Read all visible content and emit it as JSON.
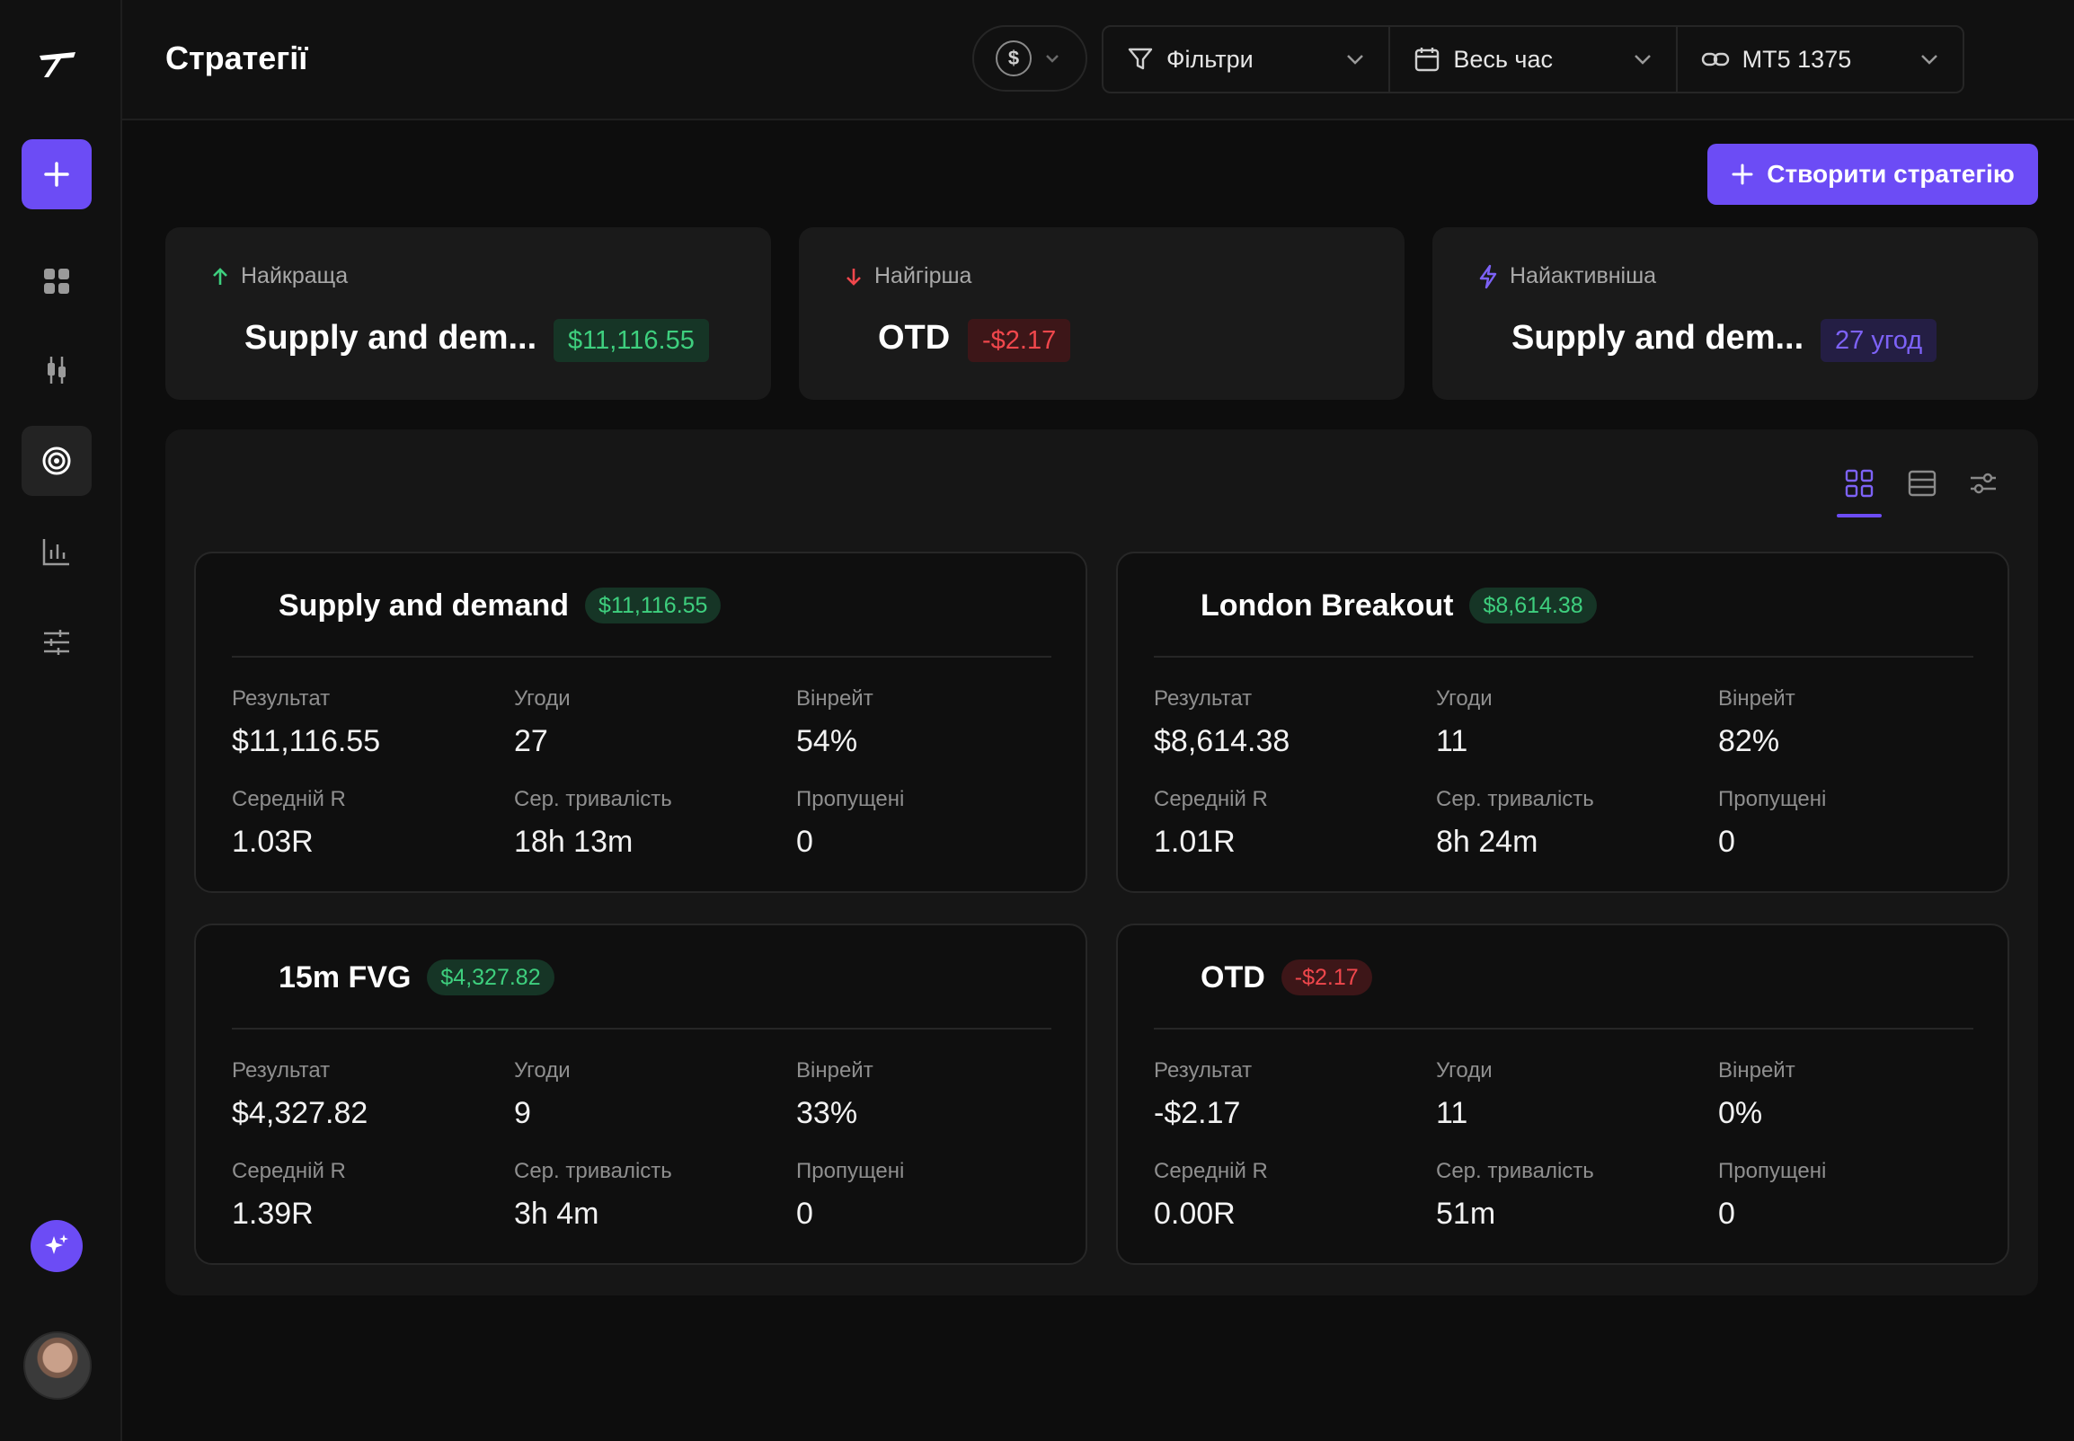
{
  "header": {
    "title": "Стратегії",
    "currency_symbol": "$",
    "filters": [
      {
        "label": "Фільтри",
        "icon": "filter-icon"
      },
      {
        "label": "Весь час",
        "icon": "calendar-icon"
      },
      {
        "label": "MT5 1375",
        "icon": "link-icon"
      }
    ]
  },
  "toolbar": {
    "create_label": "Створити стратегію"
  },
  "summary": {
    "best": {
      "label": "Найкраща",
      "name": "Supply and dem...",
      "value": "$11,116.55"
    },
    "worst": {
      "label": "Найгірша",
      "name": "OTD",
      "value": "-$2.17"
    },
    "active": {
      "label": "Найактивніша",
      "name": "Supply and dem...",
      "value": "27 угод"
    }
  },
  "stat_labels": {
    "result": "Результат",
    "trades": "Угоди",
    "winrate": "Вінрейт",
    "avg_r": "Середній R",
    "avg_duration": "Сер. тривалість",
    "missed": "Пропущені"
  },
  "strategies": [
    {
      "name": "Supply and demand",
      "badge": "$11,116.55",
      "result": "$11,116.55",
      "trades": "27",
      "winrate": "54%",
      "avg_r": "1.03R",
      "avg_duration": "18h 13m",
      "missed": "0"
    },
    {
      "name": "London Breakout",
      "badge": "$8,614.38",
      "result": "$8,614.38",
      "trades": "11",
      "winrate": "82%",
      "avg_r": "1.01R",
      "avg_duration": "8h 24m",
      "missed": "0"
    },
    {
      "name": "15m FVG",
      "badge": "$4,327.82",
      "result": "$4,327.82",
      "trades": "9",
      "winrate": "33%",
      "avg_r": "1.39R",
      "avg_duration": "3h 4m",
      "missed": "0"
    },
    {
      "name": "OTD",
      "badge": "-$2.17",
      "result": "-$2.17",
      "trades": "11",
      "winrate": "0%",
      "avg_r": "0.00R",
      "avg_duration": "51m",
      "missed": "0"
    }
  ],
  "colors": {
    "accent": "#6c4cf5",
    "positive": "#3ecf7e",
    "negative": "#f0474c"
  }
}
